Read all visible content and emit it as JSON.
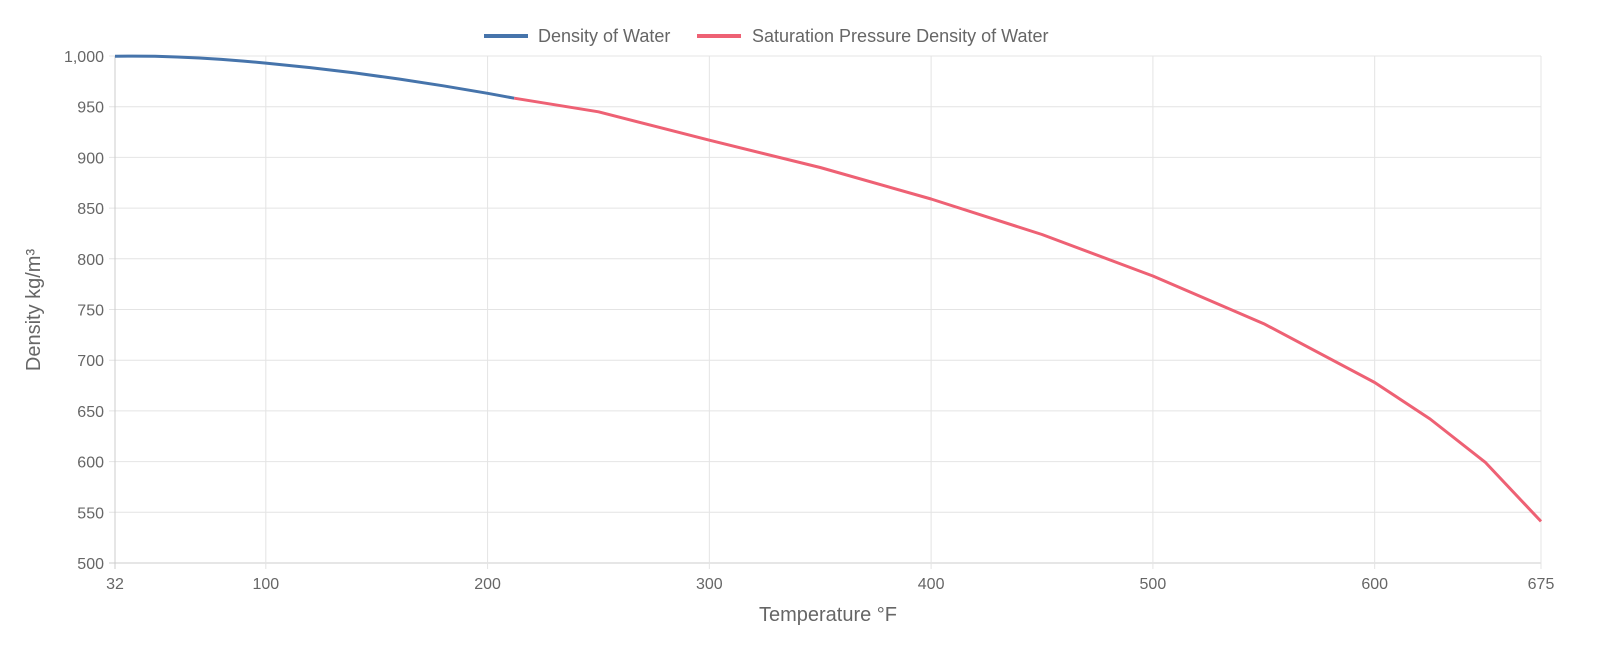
{
  "chart_data": {
    "type": "line",
    "xlabel": "Temperature °F",
    "ylabel": "Density kg/m³",
    "xlim": [
      32,
      675
    ],
    "ylim": [
      500,
      1000
    ],
    "x_ticks": [
      32,
      100,
      200,
      300,
      400,
      500,
      600,
      675
    ],
    "y_ticks": [
      500,
      550,
      600,
      650,
      700,
      750,
      800,
      850,
      900,
      950,
      1000
    ],
    "y_tick_labels": [
      "500",
      "550",
      "600",
      "650",
      "700",
      "750",
      "800",
      "850",
      "900",
      "950",
      "1,000"
    ],
    "grid": true,
    "legend_position": "top",
    "series": [
      {
        "name": "Density of Water",
        "color": "#4674ab",
        "x": [
          32,
          40,
          50,
          60,
          70,
          80,
          90,
          100,
          120,
          140,
          160,
          180,
          200,
          212
        ],
        "y": [
          999.8,
          999.9,
          999.7,
          999.0,
          998.0,
          996.6,
          995.0,
          993.0,
          988.6,
          983.3,
          977.3,
          970.6,
          963.2,
          958.4
        ]
      },
      {
        "name": "Saturation Pressure Density of Water",
        "color": "#ee6174",
        "x": [
          212,
          250,
          300,
          350,
          400,
          450,
          500,
          550,
          600,
          625,
          650,
          675
        ],
        "y": [
          958.4,
          945,
          917,
          890,
          859,
          824,
          783,
          736,
          678,
          642,
          599,
          541
        ]
      }
    ]
  }
}
